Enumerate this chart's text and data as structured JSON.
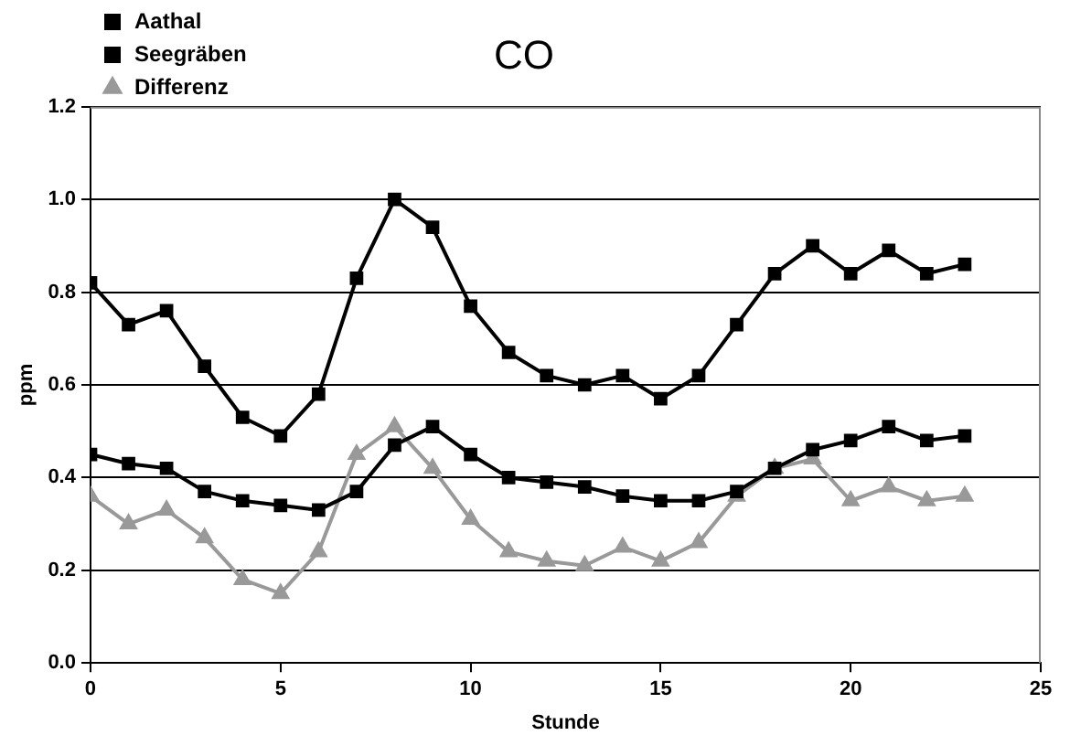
{
  "chart_data": {
    "type": "line",
    "title": "CO",
    "xlabel": "Stunde",
    "ylabel": "ppm",
    "x": [
      0,
      1,
      2,
      3,
      4,
      5,
      6,
      7,
      8,
      9,
      10,
      11,
      12,
      13,
      14,
      15,
      16,
      17,
      18,
      19,
      20,
      21,
      22,
      23
    ],
    "series": [
      {
        "name": "Aathal",
        "color": "#000000",
        "marker": "square",
        "values": [
          0.82,
          0.73,
          0.76,
          0.64,
          0.53,
          0.49,
          0.58,
          0.83,
          1.0,
          0.94,
          0.77,
          0.67,
          0.62,
          0.6,
          0.62,
          0.57,
          0.62,
          0.73,
          0.84,
          0.9,
          0.84,
          0.89,
          0.84,
          0.86
        ]
      },
      {
        "name": "Seegräben",
        "color": "#000000",
        "marker": "square",
        "values": [
          0.45,
          0.43,
          0.42,
          0.37,
          0.35,
          0.34,
          0.33,
          0.37,
          0.47,
          0.51,
          0.45,
          0.4,
          0.39,
          0.38,
          0.36,
          0.35,
          0.35,
          0.37,
          0.42,
          0.46,
          0.48,
          0.51,
          0.48,
          0.49
        ]
      },
      {
        "name": "Differenz",
        "color": "#999999",
        "marker": "triangle",
        "values": [
          0.36,
          0.3,
          0.33,
          0.27,
          0.18,
          0.15,
          0.24,
          0.45,
          0.51,
          0.42,
          0.31,
          0.24,
          0.22,
          0.21,
          0.25,
          0.22,
          0.26,
          0.36,
          0.42,
          0.44,
          0.35,
          0.38,
          0.35,
          0.36
        ]
      }
    ],
    "xlim": [
      0,
      25
    ],
    "xticks": [
      0,
      5,
      10,
      15,
      20,
      25
    ],
    "ylim": [
      0,
      1.2
    ],
    "yticks": [
      {
        "value": 0,
        "label": "0.0"
      },
      {
        "value": 0.2,
        "label": "0.2"
      },
      {
        "value": 0.4,
        "label": "0.4"
      },
      {
        "value": 0.6,
        "label": "0.6"
      },
      {
        "value": 0.8,
        "label": "0.8"
      },
      {
        "value": 1.0,
        "label": "1.0"
      },
      {
        "value": 1.2,
        "label": "1.2"
      }
    ],
    "grid": "y",
    "legend": "top left",
    "line_style": "solid"
  }
}
